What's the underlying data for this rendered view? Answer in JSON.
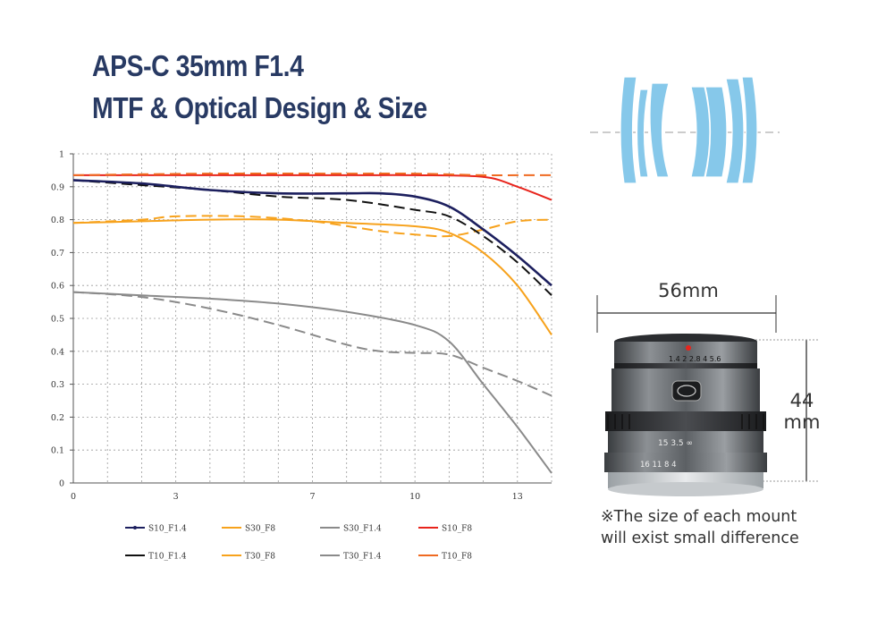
{
  "header": {
    "title_line1": "APS-C 35mm F1.4",
    "title_line2": "MTF & Optical Design & Size"
  },
  "size_info": {
    "width_label": "56mm",
    "height_value": "44",
    "height_unit": "mm",
    "note_line1": "※The size of each mount",
    "note_line2": "will exist small difference"
  },
  "lens_markings": {
    "aperture_scale": "1.4   2   2.8  4  5.6",
    "distance_scale": "15  3.5 ∞",
    "focus_scale": "16  11  8   4"
  },
  "colors": {
    "title": "#283a63",
    "navy": "#1c1f5e",
    "black": "#111111",
    "orange": "#f7a21c",
    "gray": "#8a8a8a",
    "red": "#e8241c",
    "red_orange": "#ef6a21",
    "optic_blue": "#86c8ea"
  },
  "chart_data": {
    "type": "line",
    "xlim": [
      0,
      14
    ],
    "ylim": [
      0,
      1
    ],
    "x_ticks": [
      0,
      3,
      7,
      10,
      13
    ],
    "y_ticks": [
      0,
      0.1,
      0.2,
      0.3,
      0.4,
      0.5,
      0.6,
      0.7,
      0.8,
      0.9,
      1
    ],
    "grid": true,
    "legend_placement": "bottom",
    "series": [
      {
        "name": "S10_F1.4",
        "color": "#1c1f5e",
        "dash": "solid",
        "marker": true,
        "points": [
          [
            0,
            0.92
          ],
          [
            2,
            0.91
          ],
          [
            4,
            0.89
          ],
          [
            6,
            0.88
          ],
          [
            8,
            0.88
          ],
          [
            9,
            0.88
          ],
          [
            10,
            0.87
          ],
          [
            11,
            0.84
          ],
          [
            12,
            0.77
          ],
          [
            13,
            0.69
          ],
          [
            14,
            0.6
          ]
        ]
      },
      {
        "name": "T10_F1.4",
        "color": "#111111",
        "dash": "dashed",
        "marker": false,
        "points": [
          [
            0,
            0.92
          ],
          [
            2,
            0.905
          ],
          [
            4,
            0.89
          ],
          [
            6,
            0.87
          ],
          [
            8,
            0.86
          ],
          [
            10,
            0.83
          ],
          [
            11,
            0.81
          ],
          [
            12,
            0.75
          ],
          [
            13,
            0.67
          ],
          [
            14,
            0.57
          ]
        ]
      },
      {
        "name": "S30_F8",
        "color": "#f7a21c",
        "dash": "solid",
        "marker": false,
        "points": [
          [
            0,
            0.79
          ],
          [
            2,
            0.795
          ],
          [
            4,
            0.8
          ],
          [
            6,
            0.8
          ],
          [
            8,
            0.79
          ],
          [
            10,
            0.78
          ],
          [
            11,
            0.76
          ],
          [
            12,
            0.7
          ],
          [
            13,
            0.6
          ],
          [
            14,
            0.45
          ]
        ]
      },
      {
        "name": "T30_F8",
        "color": "#f7a21c",
        "dash": "dashed",
        "marker": false,
        "points": [
          [
            0,
            0.79
          ],
          [
            2,
            0.8
          ],
          [
            3,
            0.81
          ],
          [
            5,
            0.81
          ],
          [
            7,
            0.795
          ],
          [
            9,
            0.765
          ],
          [
            10,
            0.755
          ],
          [
            11,
            0.75
          ],
          [
            12,
            0.77
          ],
          [
            13,
            0.795
          ],
          [
            14,
            0.8
          ]
        ]
      },
      {
        "name": "S30_F1.4",
        "color": "#8a8a8a",
        "dash": "solid",
        "marker": false,
        "points": [
          [
            0,
            0.58
          ],
          [
            2,
            0.57
          ],
          [
            4,
            0.56
          ],
          [
            6,
            0.545
          ],
          [
            8,
            0.52
          ],
          [
            10,
            0.48
          ],
          [
            11,
            0.43
          ],
          [
            12,
            0.3
          ],
          [
            13,
            0.17
          ],
          [
            14,
            0.03
          ]
        ]
      },
      {
        "name": "T30_F1.4",
        "color": "#8a8a8a",
        "dash": "dashed",
        "marker": false,
        "points": [
          [
            0,
            0.58
          ],
          [
            2,
            0.565
          ],
          [
            4,
            0.53
          ],
          [
            6,
            0.48
          ],
          [
            8,
            0.42
          ],
          [
            9,
            0.4
          ],
          [
            10,
            0.395
          ],
          [
            11,
            0.39
          ],
          [
            12,
            0.35
          ],
          [
            13,
            0.31
          ],
          [
            14,
            0.265
          ]
        ]
      },
      {
        "name": "S10_F8",
        "color": "#e8241c",
        "dash": "solid",
        "marker": false,
        "points": [
          [
            0,
            0.935
          ],
          [
            4,
            0.935
          ],
          [
            8,
            0.935
          ],
          [
            10,
            0.935
          ],
          [
            12,
            0.93
          ],
          [
            13,
            0.9
          ],
          [
            14,
            0.86
          ]
        ]
      },
      {
        "name": "T10_F8",
        "color": "#ef6a21",
        "dash": "dashed",
        "marker": false,
        "points": [
          [
            0,
            0.935
          ],
          [
            4,
            0.94
          ],
          [
            8,
            0.94
          ],
          [
            10,
            0.94
          ],
          [
            12,
            0.935
          ],
          [
            13,
            0.935
          ],
          [
            14,
            0.935
          ]
        ]
      }
    ],
    "legend_order": [
      "S10_F1.4",
      "S30_F8",
      "S30_F1.4",
      "S10_F8",
      "T10_F1.4",
      "T30_F8",
      "T30_F1.4",
      "T10_F8"
    ]
  }
}
